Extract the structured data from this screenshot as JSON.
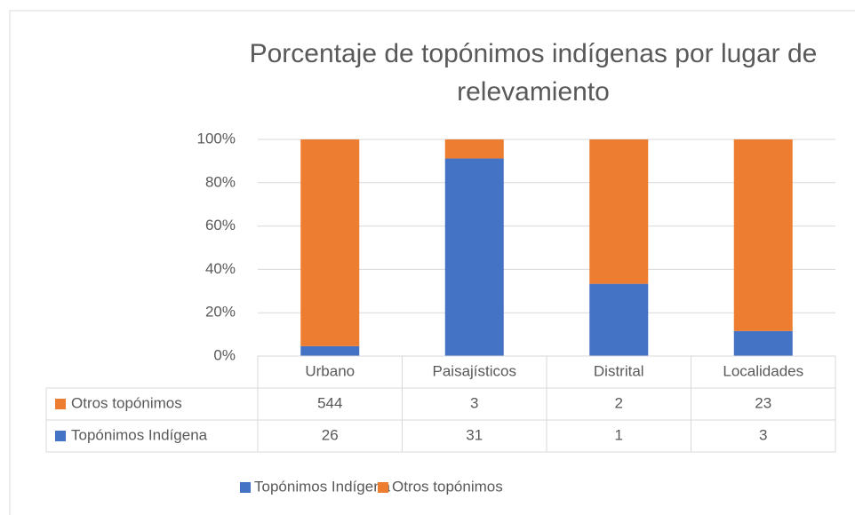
{
  "chart_data": {
    "type": "bar",
    "stack": "percent",
    "title": "Porcentaje de topónimos indígenas por lugar de relevamiento",
    "categories": [
      "Urbano",
      "Paisajísticos",
      "Distrital",
      "Localidades"
    ],
    "series": [
      {
        "name": "Topónimos Indígena",
        "color": "#4472c4",
        "values": [
          26,
          31,
          1,
          3
        ]
      },
      {
        "name": "Otros topónimos",
        "color": "#ed7d31",
        "values": [
          544,
          3,
          2,
          23
        ]
      }
    ],
    "ylim": [
      0,
      100
    ],
    "yticks": [
      {
        "value": 0,
        "label": "0%"
      },
      {
        "value": 20,
        "label": "20%"
      },
      {
        "value": 40,
        "label": "40%"
      },
      {
        "value": 60,
        "label": "60%"
      },
      {
        "value": 80,
        "label": "80%"
      },
      {
        "value": 100,
        "label": "100%"
      }
    ],
    "grid": true,
    "data_table": true,
    "legend": "bottom"
  }
}
